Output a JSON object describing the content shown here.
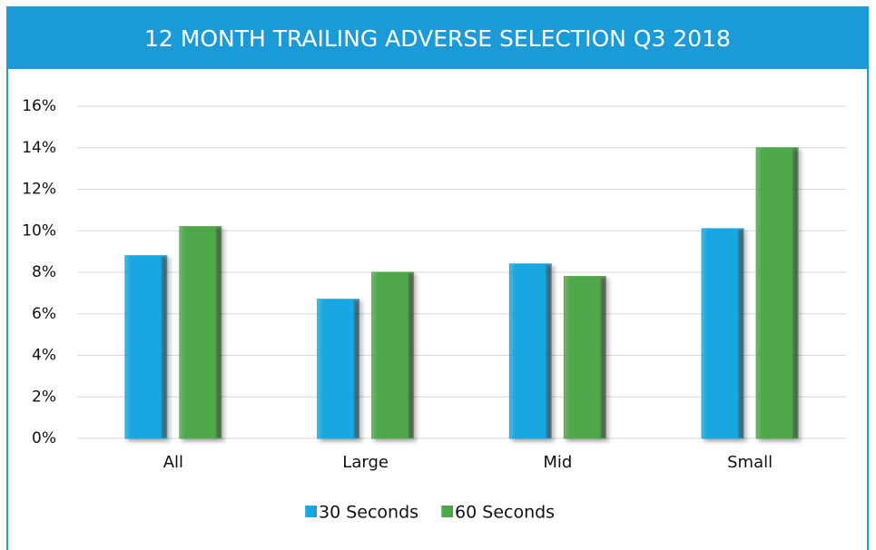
{
  "chart_data": {
    "type": "bar",
    "title": "12 MONTH TRAILING ADVERSE SELECTION Q3 2018",
    "categories": [
      "All",
      "Large",
      "Mid",
      "Small"
    ],
    "series": [
      {
        "name": "30 Seconds",
        "color": "#17a8e2",
        "values": [
          8.8,
          6.7,
          8.4,
          10.1
        ]
      },
      {
        "name": "60 Seconds",
        "color": "#4fa84a",
        "values": [
          10.2,
          8.0,
          7.8,
          14.0
        ]
      }
    ],
    "ylim": [
      0,
      16
    ],
    "yticks": [
      {
        "value": 0,
        "label": "0%"
      },
      {
        "value": 2,
        "label": "2%"
      },
      {
        "value": 4,
        "label": "4%"
      },
      {
        "value": 6,
        "label": "6%"
      },
      {
        "value": 8,
        "label": "8%"
      },
      {
        "value": 10,
        "label": "10%"
      },
      {
        "value": 12,
        "label": "12%"
      },
      {
        "value": 14,
        "label": "14%"
      },
      {
        "value": 16,
        "label": "16%"
      }
    ],
    "grid": true,
    "legend": "bottom"
  }
}
